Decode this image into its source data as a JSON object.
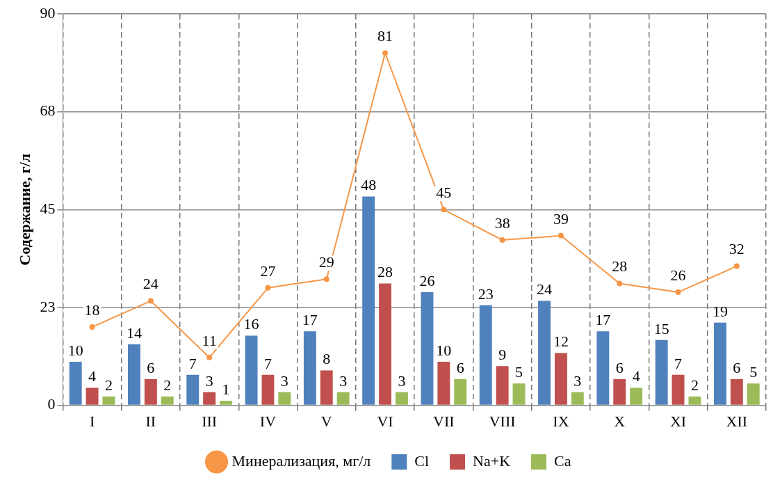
{
  "chart_data": {
    "type": "bar",
    "ylabel": "Содержание, г/л",
    "categories": [
      "I",
      "II",
      "III",
      "IV",
      "V",
      "VI",
      "VII",
      "VIII",
      "IX",
      "X",
      "XI",
      "XII"
    ],
    "series": [
      {
        "name": "Cl",
        "color": "#4f81bd",
        "values": [
          10,
          14,
          7,
          16,
          17,
          48,
          26,
          23,
          24,
          17,
          15,
          19
        ]
      },
      {
        "name": "Na+K",
        "color": "#c0504d",
        "values": [
          4,
          6,
          3,
          7,
          8,
          28,
          10,
          9,
          12,
          6,
          7,
          6
        ]
      },
      {
        "name": "Ca",
        "color": "#9bbb59",
        "values": [
          2,
          2,
          1,
          3,
          3,
          3,
          6,
          5,
          3,
          4,
          2,
          5
        ]
      },
      {
        "name": "Минерализация, мг/л",
        "type": "line",
        "color": "#f79646",
        "marker": "circle",
        "line_style": "solid",
        "values": [
          18,
          24,
          11,
          27,
          29,
          81,
          45,
          38,
          39,
          28,
          26,
          32
        ]
      }
    ],
    "ylim": [
      0,
      90
    ],
    "yticks": [
      0,
      {
        "value": 22.5,
        "label": "23"
      },
      45,
      {
        "value": 67.5,
        "label": "68"
      },
      90
    ],
    "grid": true,
    "legend": "bottom",
    "data_labels": true
  }
}
